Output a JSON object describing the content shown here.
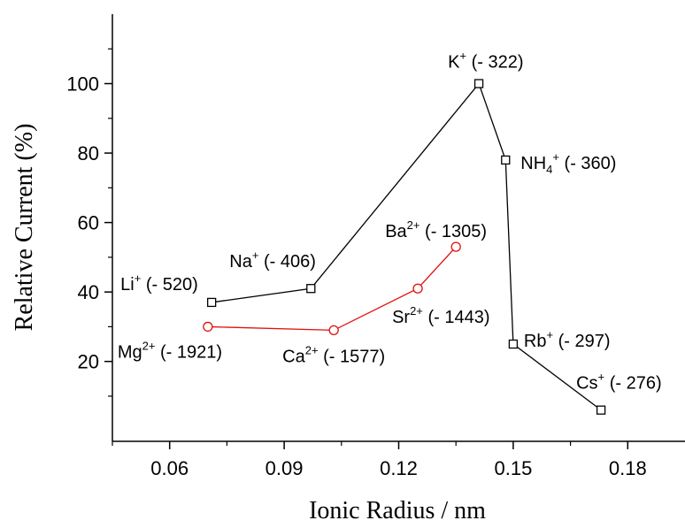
{
  "chart_data": {
    "type": "line",
    "xlabel": "Ionic Radius / nm",
    "ylabel": "Relative Current (%)",
    "xlim": [
      0.045,
      0.195
    ],
    "ylim": [
      -3,
      120
    ],
    "xticks": [
      0.06,
      0.09,
      0.12,
      0.15,
      0.18
    ],
    "yticks": [
      20,
      40,
      60,
      80,
      100
    ],
    "xtick_labels": [
      "0.06",
      "0.09",
      "0.12",
      "0.15",
      "0.18"
    ],
    "ytick_labels": [
      "20",
      "40",
      "60",
      "80",
      "100"
    ],
    "grid": false,
    "legend": "none",
    "series": [
      {
        "color": "#000000",
        "marker": "square",
        "points": [
          {
            "x": 0.071,
            "y": 37,
            "ion": "Li",
            "sup": "+",
            "sub": "",
            "value": "(- 520)"
          },
          {
            "x": 0.097,
            "y": 41,
            "ion": "Na",
            "sup": "+",
            "sub": "",
            "value": "(- 406)"
          },
          {
            "x": 0.141,
            "y": 100,
            "ion": "K",
            "sup": "+",
            "sub": "",
            "value": "(- 322)"
          },
          {
            "x": 0.148,
            "y": 78,
            "ion": "NH",
            "sup": "+",
            "sub": "4",
            "value": "(- 360)"
          },
          {
            "x": 0.15,
            "y": 25,
            "ion": "Rb",
            "sup": "+",
            "sub": "",
            "value": "(- 297)"
          },
          {
            "x": 0.173,
            "y": 6,
            "ion": "Cs",
            "sup": "+",
            "sub": "",
            "value": "(- 276)"
          }
        ]
      },
      {
        "color": "#e01010",
        "marker": "circle",
        "points": [
          {
            "x": 0.07,
            "y": 30,
            "ion": "Mg",
            "sup": "2+",
            "sub": "",
            "value": "(- 1921)"
          },
          {
            "x": 0.103,
            "y": 29,
            "ion": "Ca",
            "sup": "2+",
            "sub": "",
            "value": "(- 1577)"
          },
          {
            "x": 0.125,
            "y": 41,
            "ion": "Sr",
            "sup": "2+",
            "sub": "",
            "value": "(- 1443)"
          },
          {
            "x": 0.135,
            "y": 53,
            "ion": "Ba",
            "sup": "2+",
            "sub": "",
            "value": "(- 1305)"
          }
        ]
      }
    ]
  }
}
